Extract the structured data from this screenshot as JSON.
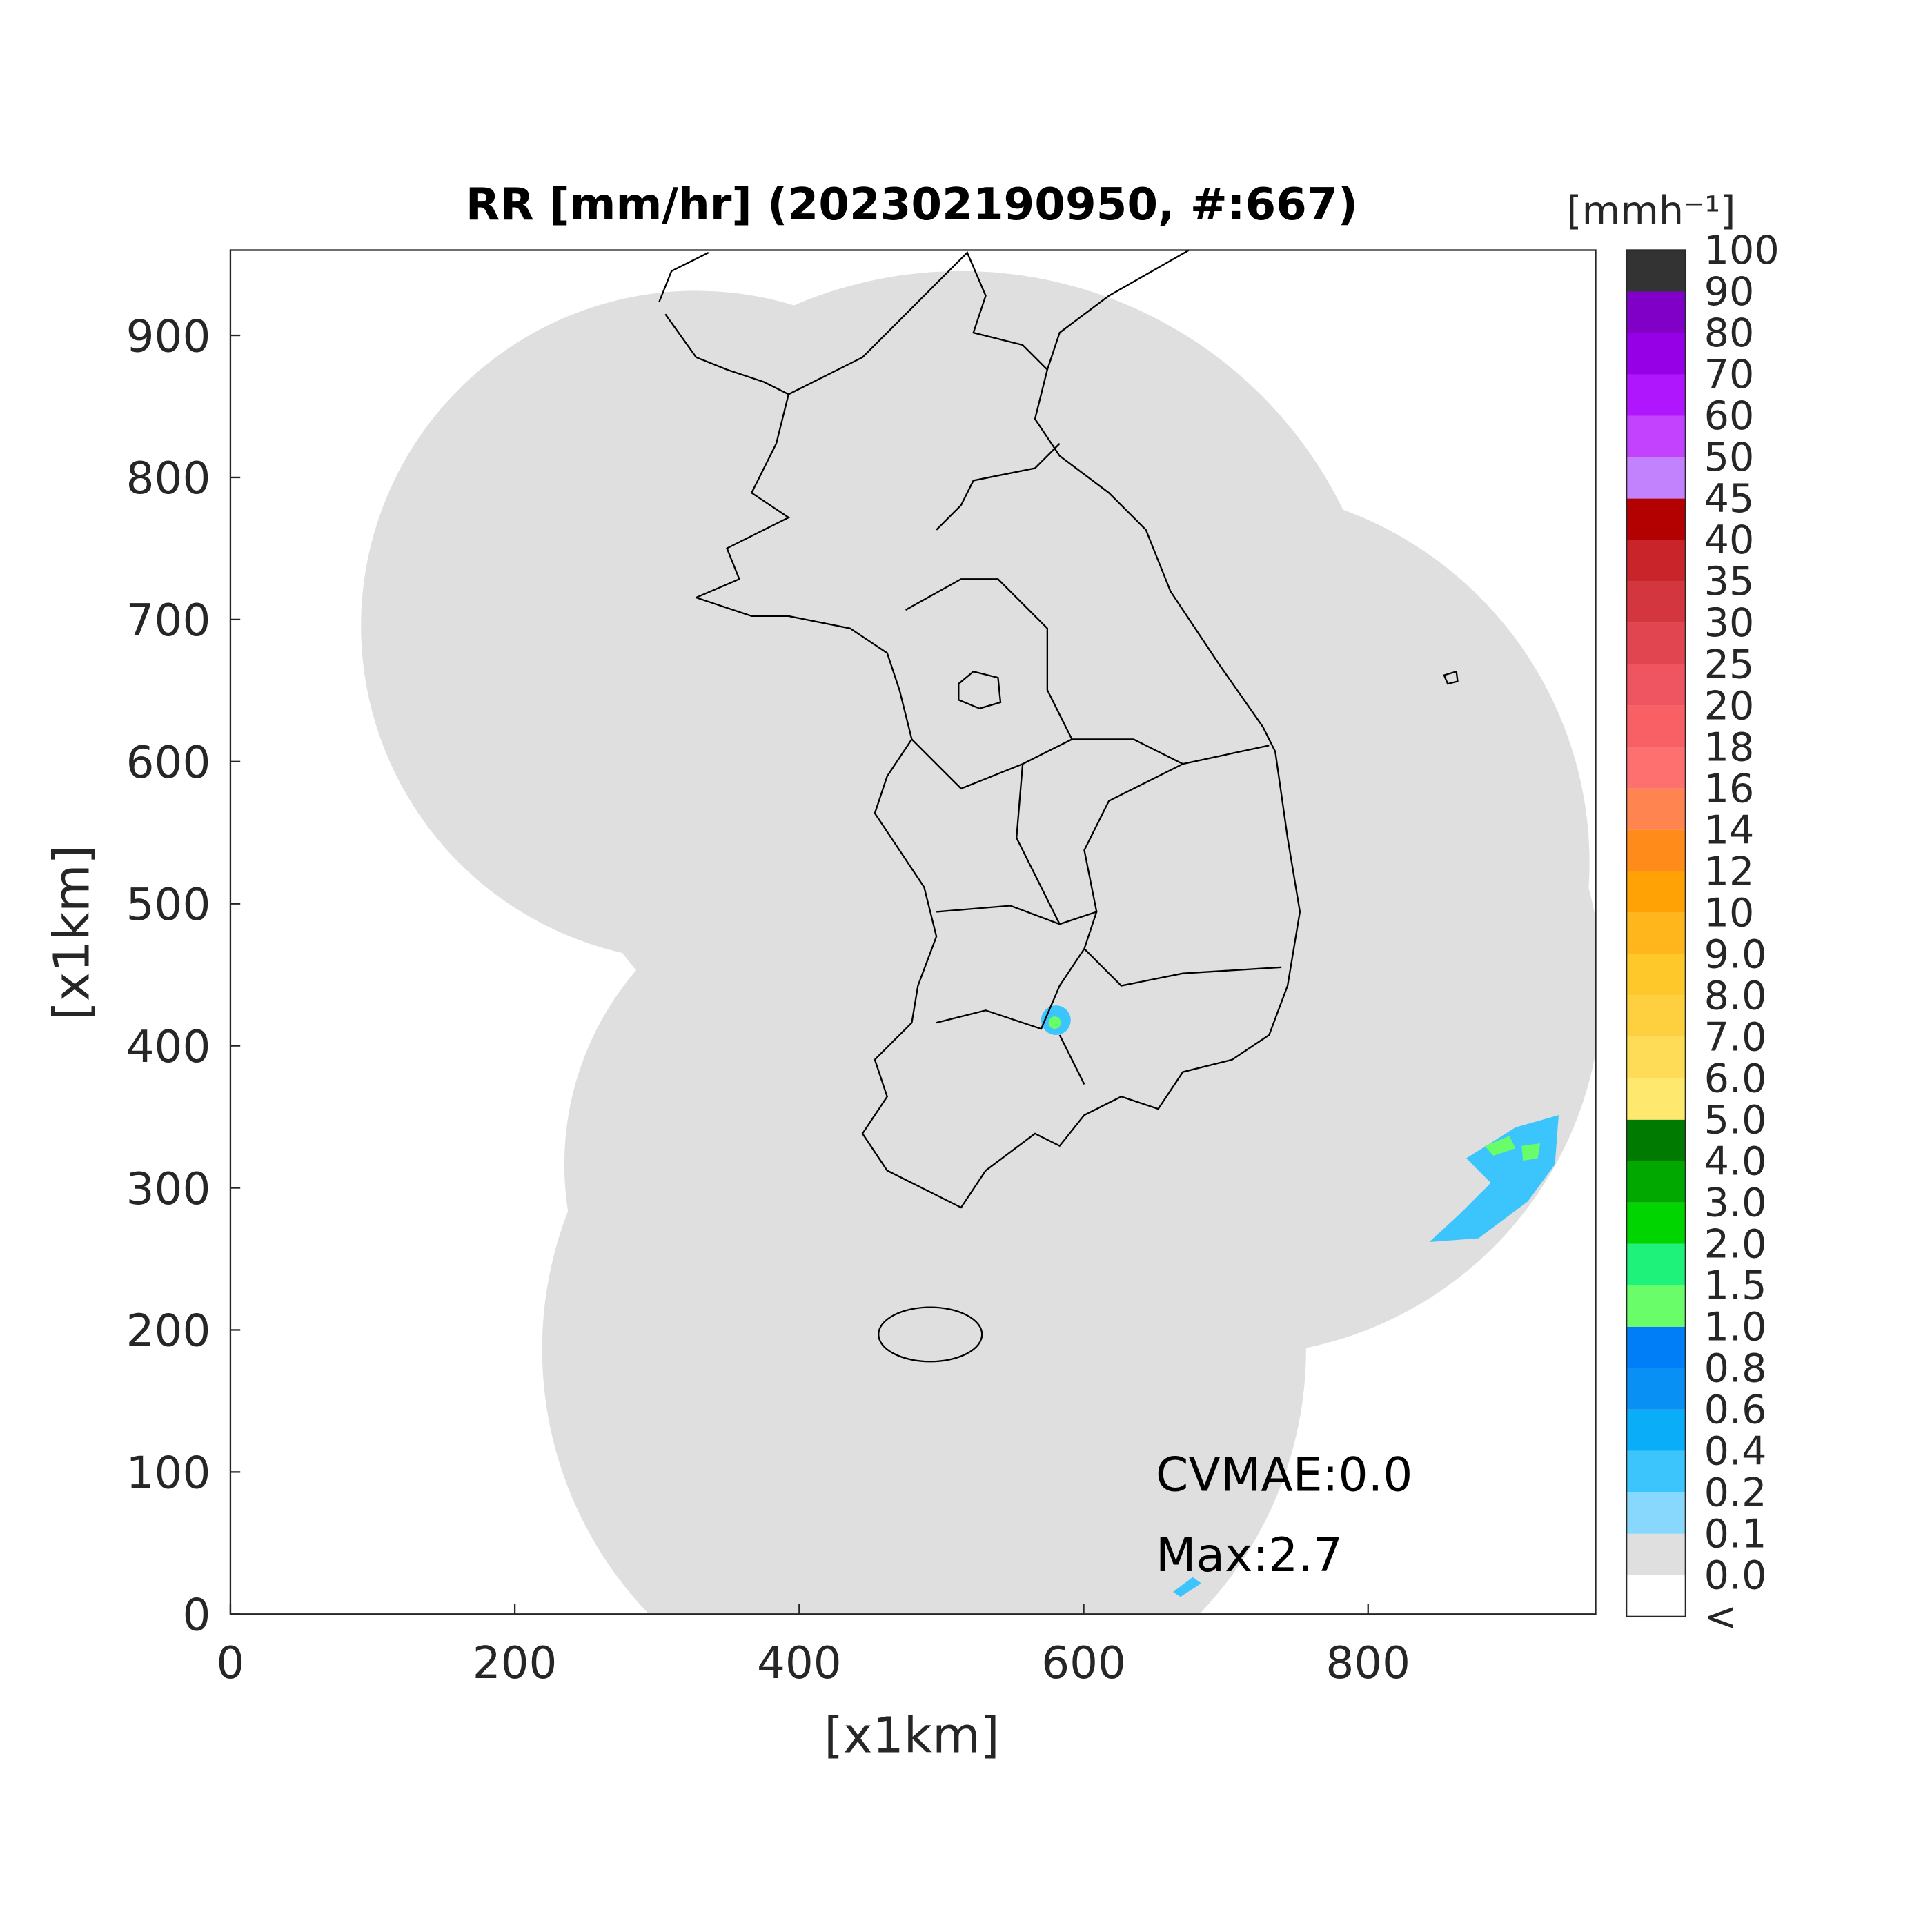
{
  "title": "RR [mm/hr] (202302190950, #:667)",
  "chart_data": {
    "type": "map",
    "xlabel": "[x1km]",
    "ylabel": "[x1km]",
    "xlim": [
      0,
      960
    ],
    "ylim": [
      0,
      960
    ],
    "xticks": [
      0,
      200,
      400,
      600,
      800
    ],
    "yticks": [
      0,
      100,
      200,
      300,
      400,
      500,
      600,
      700,
      800,
      900
    ],
    "annotations": [
      "CVMAE:0.0",
      "Max:2.7"
    ],
    "colorbar": {
      "label": "[mmh⁻¹]",
      "levels": [
        "<",
        "0.0",
        "0.1",
        "0.2",
        "0.4",
        "0.6",
        "0.8",
        "1.0",
        "1.5",
        "2.0",
        "3.0",
        "4.0",
        "5.0",
        "6.0",
        "7.0",
        "8.0",
        "9.0",
        "10",
        "12",
        "14",
        "16",
        "18",
        "20",
        "25",
        "30",
        "35",
        "40",
        "45",
        "50",
        "60",
        "70",
        "80",
        "90",
        "100"
      ],
      "colors": [
        "#ffffff",
        "#dfdfdf",
        "#88d8fe",
        "#3cc5fd",
        "#0aaef8",
        "#0890f5",
        "#007ef8",
        "#6afd6a",
        "#1ef27a",
        "#00d500",
        "#00a800",
        "#007a00",
        "#fee86e",
        "#fedc57",
        "#fed040",
        "#ffc82a",
        "#ffb51c",
        "#ffa205",
        "#ff8c1a",
        "#ff8450",
        "#fe7070",
        "#f86066",
        "#ee5560",
        "#e14650",
        "#d3363f",
        "#c8242a",
        "#b30000",
        "#c282fe",
        "#c242fe",
        "#b016fe",
        "#9500e6",
        "#8000c8",
        "#333333"
      ]
    }
  }
}
